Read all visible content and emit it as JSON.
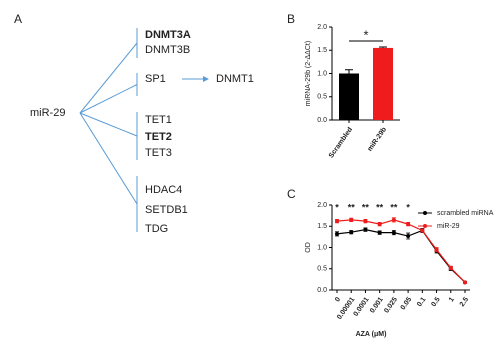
{
  "diagram": {
    "panel": "A",
    "source": "miR-29",
    "groups": [
      {
        "nodes": [
          {
            "label": "DNMT3A",
            "bold": true
          },
          {
            "label": "DNMT3B"
          }
        ]
      },
      {
        "nodes": [
          {
            "label": "SP1"
          }
        ],
        "target": "DNMT1"
      },
      {
        "nodes": [
          {
            "label": "TET1"
          },
          {
            "label": "TET2",
            "bold": true
          },
          {
            "label": "TET3"
          }
        ]
      },
      {
        "nodes": [
          {
            "label": "HDAC4"
          },
          {
            "label": "SETDB1"
          },
          {
            "label": "TDG"
          }
        ]
      }
    ]
  },
  "chart_data": [
    {
      "type": "bar",
      "panel": "B",
      "y_label": "miRNA-29b (2-ΔΔCt)",
      "significance": "*",
      "categories": [
        "Scrambled",
        "miR-29b"
      ],
      "values": [
        1.0,
        1.55
      ],
      "errors": [
        0.08,
        0.02
      ],
      "colors": [
        "#000000",
        "#ee1c1c"
      ],
      "ylim": [
        0,
        2
      ],
      "yticks": [
        {
          "value": 0,
          "label": "0.0"
        },
        0.5,
        {
          "value": 1,
          "label": "1.0"
        },
        1.5,
        {
          "value": 2,
          "label": "2.0"
        }
      ]
    },
    {
      "type": "line",
      "panel": "C",
      "y_label": "OD",
      "x_label": "AZA (μM)",
      "categories": [
        "0",
        "0.00001",
        "0.0001",
        "0.001",
        "0.025",
        "0.05",
        "0.1",
        "0.5",
        "1",
        "2.5"
      ],
      "series": [
        {
          "name": "scrambled miRNA",
          "color": "#000000",
          "values": [
            1.32,
            1.36,
            1.42,
            1.35,
            1.35,
            1.27,
            1.4,
            0.92,
            0.5,
            0.18
          ],
          "errors": [
            0.05,
            0.04,
            0.04,
            0.04,
            0.05,
            0.07,
            0.05,
            0.05,
            0.04,
            0.02
          ]
        },
        {
          "name": "miR-29",
          "color": "#ee1c1c",
          "values": [
            1.62,
            1.65,
            1.62,
            1.55,
            1.65,
            1.55,
            1.4,
            0.95,
            0.52,
            0.18
          ],
          "errors": [
            0.04,
            0.04,
            0.04,
            0.04,
            0.05,
            0.04,
            0.04,
            0.05,
            0.04,
            0.02
          ]
        }
      ],
      "annotations": [
        "*",
        "**",
        "**",
        "**",
        "**",
        "*"
      ],
      "ylim": [
        0,
        2
      ],
      "yticks": [
        {
          "value": 0,
          "label": "0.0"
        },
        0.5,
        {
          "value": 1,
          "label": "1.0"
        },
        1.5,
        {
          "value": 2,
          "label": "2.0"
        }
      ]
    }
  ]
}
